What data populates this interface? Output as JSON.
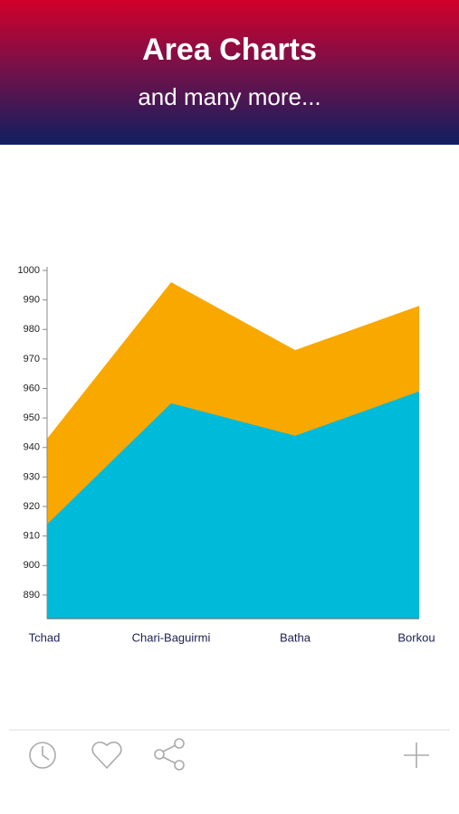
{
  "header": {
    "title": "Area Charts",
    "subtitle": "and many more..."
  },
  "chart_data": {
    "type": "area",
    "categories": [
      "Tchad",
      "Chari-Baguirmi",
      "Batha",
      "Borkou"
    ],
    "series": [
      {
        "color": "#f9a800",
        "values": [
          943,
          996,
          973,
          988
        ]
      },
      {
        "color": "#00bad9",
        "values": [
          914,
          955,
          944,
          959
        ]
      }
    ],
    "ylim": [
      882,
      1000
    ],
    "yticks": [
      890,
      900,
      910,
      920,
      930,
      940,
      950,
      960,
      970,
      980,
      990,
      1000
    ]
  }
}
